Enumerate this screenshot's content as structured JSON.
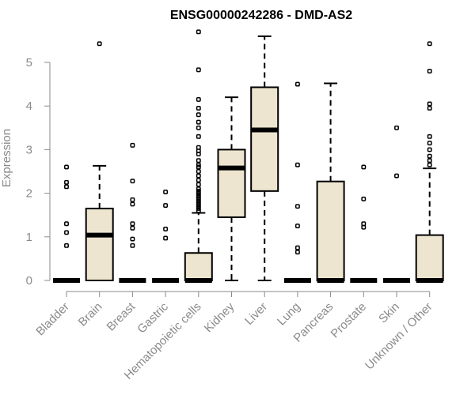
{
  "chart_data": {
    "type": "boxplot",
    "title": "ENSG00000242286 - DMD-AS2",
    "ylabel": "Expression",
    "xlabel": "",
    "ylim": [
      0,
      5.8
    ],
    "yticks": [
      0,
      1,
      2,
      3,
      4,
      5
    ],
    "grid": false,
    "colors": {
      "box_fill": "#ede5cf",
      "stroke": "#000000",
      "axis": "#8a8a8a"
    },
    "categories": [
      "Bladder",
      "Brain",
      "Breast",
      "Gastric",
      "Hematopoietic cells",
      "Kidney",
      "Liver",
      "Lung",
      "Pancreas",
      "Prostate",
      "Skin",
      "Unknown / Other"
    ],
    "boxes": [
      {
        "category": "Bladder",
        "whisker_low": 0,
        "q1": 0,
        "median": 0,
        "q3": 0,
        "whisker_high": 0,
        "outliers": [
          0.8,
          1.1,
          1.3,
          2.15,
          2.25,
          2.6
        ]
      },
      {
        "category": "Brain",
        "whisker_low": 0,
        "q1": 0,
        "median": 1.04,
        "q3": 1.65,
        "whisker_high": 2.63,
        "outliers": [
          5.43
        ]
      },
      {
        "category": "Breast",
        "whisker_low": 0,
        "q1": 0,
        "median": 0,
        "q3": 0,
        "whisker_high": 0,
        "outliers": [
          0.8,
          0.95,
          1.2,
          1.3,
          1.75,
          1.85,
          2.28,
          3.1
        ]
      },
      {
        "category": "Gastric",
        "whisker_low": 0,
        "q1": 0,
        "median": 0,
        "q3": 0,
        "whisker_high": 0,
        "outliers": [
          0.97,
          1.18,
          1.72,
          2.03
        ]
      },
      {
        "category": "Hematopoietic cells",
        "whisker_low": 0,
        "q1": 0,
        "median": 0,
        "q3": 0.63,
        "whisker_high": 1.55,
        "outliers": [
          1.6,
          1.65,
          1.7,
          1.75,
          1.8,
          1.85,
          1.9,
          1.95,
          2.0,
          2.05,
          2.1,
          2.2,
          2.3,
          2.4,
          2.5,
          2.6,
          2.65,
          2.75,
          2.9,
          2.97,
          3.05,
          3.3,
          3.5,
          3.63,
          3.8,
          3.95,
          4.15,
          4.83,
          5.7
        ]
      },
      {
        "category": "Kidney",
        "whisker_low": 0,
        "q1": 1.45,
        "median": 2.58,
        "q3": 3.0,
        "whisker_high": 4.2,
        "outliers": []
      },
      {
        "category": "Liver",
        "whisker_low": 0,
        "q1": 2.05,
        "median": 3.45,
        "q3": 4.43,
        "whisker_high": 5.6,
        "outliers": []
      },
      {
        "category": "Lung",
        "whisker_low": 0,
        "q1": 0,
        "median": 0,
        "q3": 0,
        "whisker_high": 0,
        "outliers": [
          0.65,
          0.75,
          1.25,
          1.7,
          2.65,
          4.5
        ]
      },
      {
        "category": "Pancreas",
        "whisker_low": 0,
        "q1": 0,
        "median": 0,
        "q3": 2.27,
        "whisker_high": 4.52,
        "outliers": []
      },
      {
        "category": "Prostate",
        "whisker_low": 0,
        "q1": 0,
        "median": 0,
        "q3": 0,
        "whisker_high": 0,
        "outliers": [
          1.22,
          1.3,
          1.87,
          2.6
        ]
      },
      {
        "category": "Skin",
        "whisker_low": 0,
        "q1": 0,
        "median": 0,
        "q3": 0,
        "whisker_high": 0,
        "outliers": [
          2.4,
          3.5
        ]
      },
      {
        "category": "Unknown / Other",
        "whisker_low": 0,
        "q1": 0,
        "median": 0,
        "q3": 1.04,
        "whisker_high": 2.57,
        "outliers": [
          2.65,
          2.75,
          2.85,
          3.0,
          3.15,
          3.3,
          3.95,
          4.05,
          4.8,
          5.43
        ]
      }
    ]
  }
}
